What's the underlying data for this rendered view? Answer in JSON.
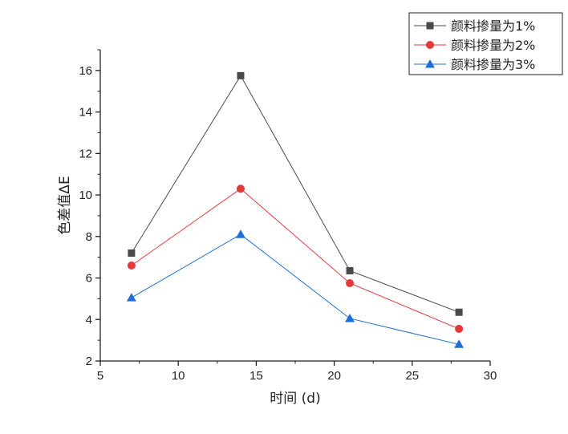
{
  "chart_data": {
    "type": "line",
    "title": "",
    "xlabel": "时间 (d)",
    "ylabel": "色差值ΔE",
    "xlim": [
      5,
      30
    ],
    "ylim": [
      2,
      17
    ],
    "xticks": [
      5,
      10,
      15,
      20,
      25,
      30
    ],
    "yticks": [
      2,
      4,
      6,
      8,
      10,
      12,
      14,
      16
    ],
    "grid": false,
    "legend_position": "top-right",
    "x": [
      7,
      14,
      21,
      28
    ],
    "series": [
      {
        "name": "颜料掺量为1%",
        "color": "#4a4a4a",
        "marker": "square",
        "values": [
          7.2,
          15.75,
          6.35,
          4.35
        ]
      },
      {
        "name": "颜料掺量为2%",
        "color": "#e5383b",
        "marker": "circle",
        "values": [
          6.6,
          10.3,
          5.75,
          3.55
        ]
      },
      {
        "name": "颜料掺量为3%",
        "color": "#1f6fd6",
        "marker": "triangle",
        "values": [
          5.05,
          8.1,
          4.05,
          2.8
        ]
      }
    ]
  }
}
